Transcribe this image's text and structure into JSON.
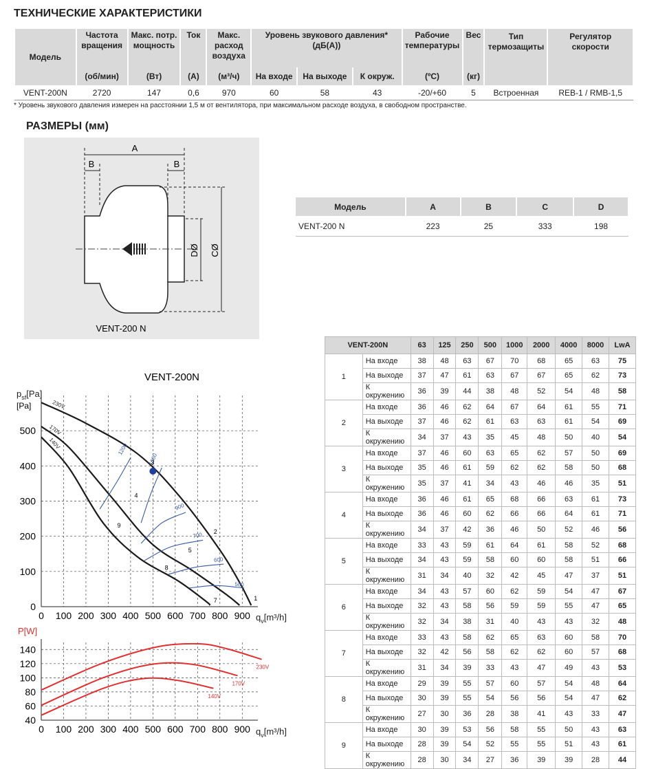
{
  "spec": {
    "title": "ТЕХНИЧЕСКИЕ ХАРАКТЕРИСТИКИ",
    "columns": [
      {
        "name": "Модель"
      },
      {
        "name": "Частота вращения",
        "unit": "(об/мин)"
      },
      {
        "name": "Макс. потр. мощность",
        "unit": "(Вт)"
      },
      {
        "name": "Ток",
        "unit": "(А)"
      },
      {
        "name": "Макс. расход воздуха",
        "unit": "(м³/ч)"
      },
      {
        "name": "Рабочие температуры",
        "unit": "(ºC)"
      },
      {
        "name": "Вес",
        "unit": "(кг)"
      },
      {
        "name": "Тип термозащиты"
      },
      {
        "name": "Регулятор скорости"
      }
    ],
    "sound_group": {
      "name": "Уровень звукового давления*",
      "unit": "(дБ(А))",
      "columns": [
        "На входе",
        "На выходе",
        "К окруж."
      ]
    },
    "row": [
      "VENT-200N",
      2720,
      147,
      "0,6",
      970,
      60,
      58,
      43,
      "-20/+60",
      5,
      "Встроенная",
      "REB-1 / RMB-1,5"
    ],
    "note": "* Уровень звукового давления измерен на расстоянии 1,5 м от вентилятора, при максимальном расходе воздуха, в свободном пространстве."
  },
  "dimensions": {
    "title": "РАЗМЕРЫ (мм)",
    "drawing": {
      "a": "A",
      "b": "B",
      "d": "DØ",
      "c": "CØ",
      "model": "VENT-200 N"
    },
    "table": {
      "header": [
        "Модель",
        "A",
        "B",
        "C",
        "D"
      ],
      "row": [
        "VENT-200 N",
        223,
        25,
        333,
        198
      ]
    }
  },
  "pressure_chart": {
    "type": "line",
    "title": "VENT-200N",
    "y_label": {
      "main": "p",
      "sub": "sf",
      "unit": "[Pa]"
    },
    "x_label": {
      "main": "q",
      "sub": "v",
      "unit": "[m³/h]"
    },
    "xlim": [
      0,
      970
    ],
    "ylim": [
      0,
      600
    ],
    "xticks": [
      0,
      100,
      200,
      300,
      400,
      500,
      600,
      700,
      800,
      900
    ],
    "yticks": [
      0,
      100,
      200,
      300,
      400,
      500
    ],
    "grid": true,
    "series": [
      {
        "name": "230V",
        "color": "#1a1a1a",
        "x": [
          0,
          200,
          432,
          616,
          801,
          894,
          940
        ],
        "values": [
          580,
          521,
          434,
          316,
          160,
          62,
          4
        ]
      },
      {
        "name": "170V",
        "color": "#1a1a1a",
        "x": [
          0,
          123,
          308,
          493,
          678,
          832,
          888
        ],
        "values": [
          512,
          453,
          316,
          180,
          102,
          33,
          4
        ]
      },
      {
        "name": "140V",
        "color": "#1a1a1a",
        "x": [
          0,
          123,
          277,
          432,
          616,
          740,
          755
        ],
        "values": [
          482,
          395,
          238,
          141,
          72,
          14,
          4
        ]
      }
    ],
    "contours": [
      {
        "name": "1200",
        "color": "#3b5ba5",
        "x": [
          262,
          339,
          401
        ],
        "values": [
          277,
          355,
          424
        ]
      },
      {
        "name": "1000",
        "color": "#3b5ba5",
        "x": [
          447,
          490,
          540
        ],
        "values": [
          238,
          320,
          395
        ]
      },
      {
        "name": "900",
        "color": "#3b5ba5",
        "x": [
          447,
          540,
          647
        ],
        "values": [
          180,
          238,
          268
        ]
      },
      {
        "name": "700",
        "color": "#3b5ba5",
        "x": [
          462,
          580,
          724
        ],
        "values": [
          131,
          170,
          189
        ]
      },
      {
        "name": "600",
        "color": "#3b5ba5",
        "x": [
          570,
          690,
          817
        ],
        "values": [
          92,
          112,
          121
        ]
      },
      {
        "name": "500",
        "color": "#3b5ba5",
        "x": [
          663,
          780,
          909
        ],
        "values": [
          53,
          60,
          53
        ]
      }
    ],
    "points": [
      {
        "label": "1",
        "x": 960,
        "y": 18
      },
      {
        "label": "2",
        "x": 780,
        "y": 207
      },
      {
        "label": "3",
        "x": 499,
        "y": 404
      },
      {
        "label": "4",
        "x": 425,
        "y": 310
      },
      {
        "label": "5",
        "x": 666,
        "y": 154
      },
      {
        "label": "7",
        "x": 780,
        "y": 12
      },
      {
        "label": "8",
        "x": 561,
        "y": 105
      },
      {
        "label": "9",
        "x": 348,
        "y": 225
      }
    ],
    "operating_point": {
      "x": 500,
      "y": 385,
      "color": "#1f3f9f"
    }
  },
  "power_chart": {
    "type": "line",
    "y_label": "P[W]",
    "x_label": {
      "main": "q",
      "sub": "v",
      "unit": "[m³/h]"
    },
    "xlim": [
      0,
      970
    ],
    "ylim": [
      40,
      150
    ],
    "xticks": [
      0,
      100,
      200,
      300,
      400,
      500,
      600,
      700,
      800,
      900
    ],
    "yticks": [
      40,
      60,
      80,
      100,
      120,
      140
    ],
    "grid": true,
    "series": [
      {
        "name": "230V",
        "color": "#e03030",
        "x": [
          0,
          277,
          524,
          709,
          832,
          987
        ],
        "values": [
          82.7,
          121,
          144,
          148,
          141,
          126
        ]
      },
      {
        "name": "170V",
        "color": "#e03030",
        "x": [
          0,
          277,
          493,
          678,
          879
        ],
        "values": [
          61,
          100,
          119,
          119,
          103
        ]
      },
      {
        "name": "140V",
        "color": "#e03030",
        "x": [
          0,
          277,
          462,
          616,
          771
        ],
        "values": [
          47,
          85,
          99,
          96,
          85
        ]
      }
    ]
  },
  "sound_table": {
    "title": "VENT-200N",
    "bands": [
      63,
      125,
      250,
      500,
      1000,
      2000,
      4000,
      8000
    ],
    "total_label": "LwA",
    "groups": [
      {
        "mode": "1",
        "rows": [
          {
            "label": "На входе",
            "values": [
              38,
              48,
              63,
              67,
              70,
              68,
              65,
              63
            ],
            "total": 75
          },
          {
            "label": "На выходе",
            "values": [
              37,
              47,
              61,
              63,
              67,
              67,
              65,
              62
            ],
            "total": 73
          },
          {
            "label": "К окружению",
            "values": [
              36,
              39,
              44,
              38,
              48,
              52,
              54,
              48
            ],
            "total": 58
          }
        ]
      },
      {
        "mode": "2",
        "rows": [
          {
            "label": "На входе",
            "values": [
              36,
              46,
              62,
              64,
              67,
              64,
              61,
              55
            ],
            "total": 71
          },
          {
            "label": "На выходе",
            "values": [
              37,
              46,
              62,
              61,
              63,
              63,
              61,
              54
            ],
            "total": 69
          },
          {
            "label": "К окружению",
            "values": [
              34,
              37,
              43,
              35,
              45,
              48,
              50,
              40
            ],
            "total": 54
          }
        ]
      },
      {
        "mode": "3",
        "rows": [
          {
            "label": "На входе",
            "values": [
              37,
              46,
              60,
              63,
              65,
              62,
              57,
              50
            ],
            "total": 69
          },
          {
            "label": "На выходе",
            "values": [
              35,
              46,
              61,
              59,
              62,
              62,
              58,
              50
            ],
            "total": 68
          },
          {
            "label": "К окружению",
            "values": [
              35,
              37,
              41,
              34,
              43,
              46,
              46,
              35
            ],
            "total": 51
          }
        ]
      },
      {
        "mode": "4",
        "rows": [
          {
            "label": "На входе",
            "values": [
              36,
              46,
              61,
              65,
              68,
              66,
              63,
              61
            ],
            "total": 73
          },
          {
            "label": "На выходе",
            "values": [
              36,
              46,
              60,
              62,
              66,
              66,
              64,
              61
            ],
            "total": 71
          },
          {
            "label": "К окружению",
            "values": [
              34,
              37,
              42,
              36,
              46,
              50,
              52,
              46
            ],
            "total": 56
          }
        ]
      },
      {
        "mode": "5",
        "rows": [
          {
            "label": "На входе",
            "values": [
              33,
              43,
              59,
              61,
              64,
              61,
              58,
              52
            ],
            "total": 68
          },
          {
            "label": "На выходе",
            "values": [
              34,
              43,
              59,
              58,
              60,
              60,
              58,
              51
            ],
            "total": 66
          },
          {
            "label": "К окружению",
            "values": [
              31,
              34,
              40,
              32,
              42,
              45,
              47,
              37
            ],
            "total": 51
          }
        ]
      },
      {
        "mode": "6",
        "rows": [
          {
            "label": "На входе",
            "values": [
              34,
              43,
              57,
              60,
              62,
              59,
              54,
              47
            ],
            "total": 67
          },
          {
            "label": "На выходе",
            "values": [
              32,
              43,
              58,
              56,
              59,
              59,
              55,
              47
            ],
            "total": 65
          },
          {
            "label": "К окружению",
            "values": [
              32,
              34,
              38,
              31,
              40,
              43,
              43,
              32
            ],
            "total": 48
          }
        ]
      },
      {
        "mode": "7",
        "rows": [
          {
            "label": "На входе",
            "values": [
              33,
              43,
              58,
              62,
              65,
              63,
              60,
              58
            ],
            "total": 70
          },
          {
            "label": "На выходе",
            "values": [
              32,
              42,
              56,
              58,
              62,
              62,
              60,
              57
            ],
            "total": 68
          },
          {
            "label": "К окружению",
            "values": [
              31,
              34,
              39,
              33,
              43,
              47,
              49,
              43
            ],
            "total": 53
          }
        ]
      },
      {
        "mode": "8",
        "rows": [
          {
            "label": "На входе",
            "values": [
              29,
              39,
              55,
              57,
              60,
              57,
              54,
              48
            ],
            "total": 64
          },
          {
            "label": "На выходе",
            "values": [
              30,
              39,
              55,
              54,
              56,
              56,
              54,
              47
            ],
            "total": 62
          },
          {
            "label": "К окружению",
            "values": [
              27,
              30,
              36,
              28,
              38,
              41,
              43,
              33
            ],
            "total": 47
          }
        ]
      },
      {
        "mode": "9",
        "rows": [
          {
            "label": "На входе",
            "values": [
              30,
              39,
              53,
              56,
              58,
              55,
              50,
              43
            ],
            "total": 63
          },
          {
            "label": "На выходе",
            "values": [
              28,
              39,
              54,
              52,
              55,
              55,
              51,
              43
            ],
            "total": 61
          },
          {
            "label": "К окружению",
            "values": [
              28,
              30,
              34,
              27,
              36,
              39,
              39,
              28
            ],
            "total": 44
          }
        ]
      }
    ]
  }
}
